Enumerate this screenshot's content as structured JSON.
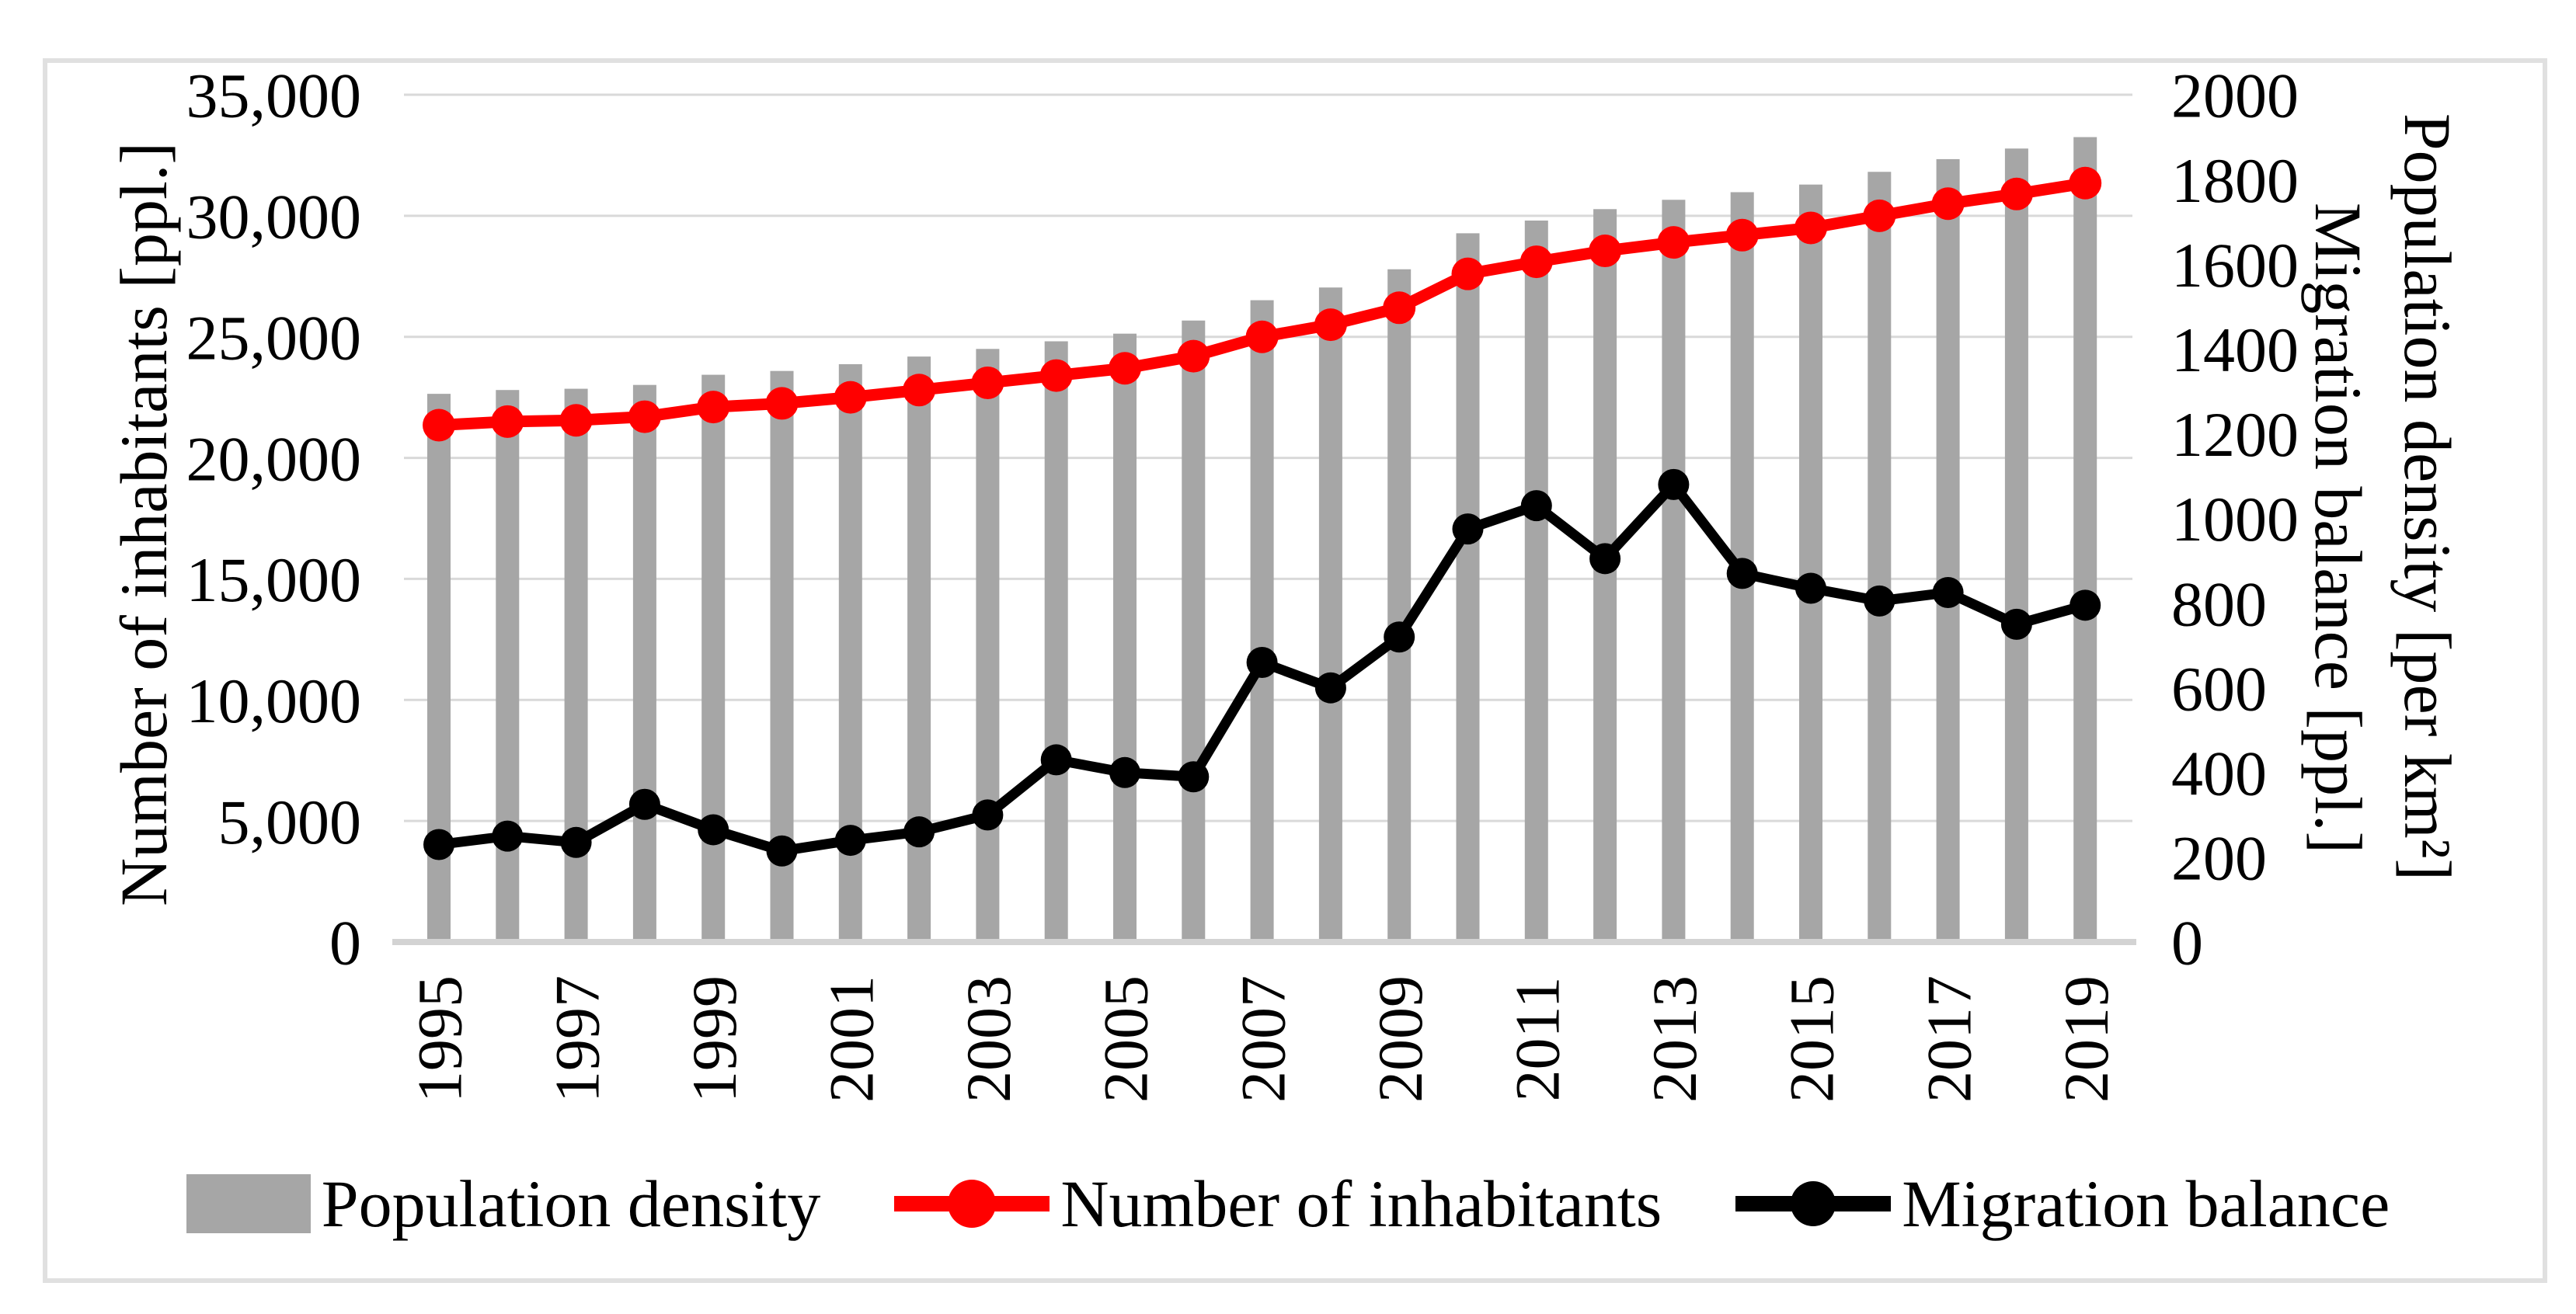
{
  "figure": {
    "background": "#FFFFFF",
    "border_color": "#E0E0E0"
  },
  "left_axis": {
    "title": "Number of inhabitants [ppl.]"
  },
  "right_axis": {
    "title_line1": "Population density [per km²]",
    "title_line2": "Migration balance [ppl.]"
  },
  "legend": {
    "items": [
      "Population density",
      "Number of inhabitants",
      "Migration balance"
    ]
  },
  "chart_data": {
    "type": "combo",
    "categories": [
      1995,
      1996,
      1997,
      1998,
      1999,
      2000,
      2001,
      2002,
      2003,
      2004,
      2005,
      2006,
      2007,
      2008,
      2009,
      2010,
      2011,
      2012,
      2013,
      2014,
      2015,
      2016,
      2017,
      2018,
      2019
    ],
    "series": [
      {
        "name": "Population density",
        "type": "bar",
        "axis": "right",
        "color": "#A6A6A6",
        "values": [
          1294,
          1303,
          1306,
          1315,
          1339,
          1348,
          1364,
          1382,
          1400,
          1418,
          1436,
          1467,
          1515,
          1545,
          1588,
          1673,
          1703,
          1730,
          1752,
          1770,
          1788,
          1818,
          1848,
          1873,
          1900
        ]
      },
      {
        "name": "Number of inhabitants",
        "type": "line",
        "axis": "left",
        "color": "#FF0000",
        "line_width": 15,
        "marker_radius": 21,
        "values": [
          21350,
          21500,
          21550,
          21700,
          22100,
          22250,
          22500,
          22800,
          23100,
          23400,
          23700,
          24200,
          25000,
          25500,
          26200,
          27600,
          28100,
          28550,
          28900,
          29200,
          29500,
          30000,
          30500,
          30900,
          31350
        ]
      },
      {
        "name": "Migration balance",
        "type": "line",
        "axis": "right",
        "color": "#000000",
        "line_width": 13,
        "marker_radius": 20,
        "values": [
          230,
          250,
          235,
          325,
          265,
          215,
          240,
          260,
          300,
          430,
          400,
          390,
          660,
          600,
          720,
          975,
          1030,
          905,
          1080,
          870,
          835,
          805,
          825,
          750,
          795
        ]
      }
    ],
    "left_ylim": [
      0,
      35000
    ],
    "left_step": 5000,
    "left_tick_labels": [
      "0",
      "5,000",
      "10,000",
      "15,000",
      "20,000",
      "25,000",
      "30,000",
      "35,000"
    ],
    "right_ylim": [
      0,
      2000
    ],
    "right_step": 200,
    "right_tick_labels": [
      "0",
      "200",
      "400",
      "600",
      "800",
      "1000",
      "1200",
      "1400",
      "1600",
      "1800",
      "2000"
    ],
    "x_label_every": 2,
    "grid": true,
    "legend_position": "bottom",
    "colors": {
      "gridline": "#D9D9D9",
      "axis_line": "#D3D3D3"
    }
  }
}
